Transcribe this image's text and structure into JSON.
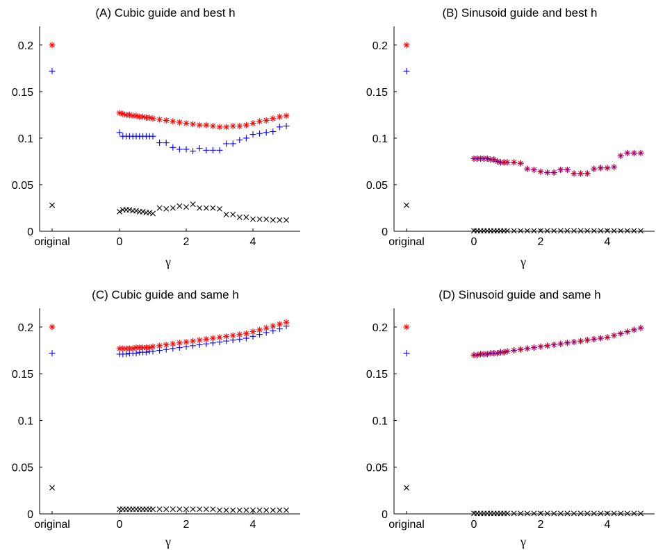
{
  "chart_data": [
    {
      "type": "scatter",
      "title": "(A) Cubic guide and best h",
      "xlabel": "γ",
      "ylabel": "",
      "xlim": [
        -0.4,
        5.3
      ],
      "ylim": [
        0,
        0.22
      ],
      "x_ticks": [
        "0",
        "2",
        "4"
      ],
      "y_ticks": [
        "0",
        "0.05",
        "0.1",
        "0.15",
        "0.2"
      ],
      "categorical_x": "original",
      "original": {
        "red_star": 0.2,
        "blue_plus": 0.172,
        "black_x": 0.028
      },
      "x": [
        0,
        0.1,
        0.2,
        0.3,
        0.4,
        0.5,
        0.6,
        0.7,
        0.8,
        0.9,
        1.0,
        1.2,
        1.4,
        1.6,
        1.8,
        2.0,
        2.2,
        2.4,
        2.6,
        2.8,
        3.0,
        3.2,
        3.4,
        3.6,
        3.8,
        4.0,
        4.2,
        4.4,
        4.6,
        4.8,
        5.0
      ],
      "series": [
        {
          "marker": "star",
          "color": "#ff0000",
          "values": [
            0.127,
            0.126,
            0.125,
            0.125,
            0.124,
            0.124,
            0.123,
            0.123,
            0.122,
            0.122,
            0.121,
            0.12,
            0.119,
            0.118,
            0.117,
            0.116,
            0.115,
            0.114,
            0.114,
            0.113,
            0.112,
            0.112,
            0.113,
            0.113,
            0.114,
            0.116,
            0.118,
            0.119,
            0.121,
            0.123,
            0.124
          ]
        },
        {
          "marker": "plus",
          "color": "#0000ff",
          "values": [
            0.106,
            0.102,
            0.102,
            0.102,
            0.102,
            0.102,
            0.102,
            0.102,
            0.102,
            0.102,
            0.102,
            0.095,
            0.095,
            0.09,
            0.088,
            0.088,
            0.086,
            0.089,
            0.087,
            0.087,
            0.087,
            0.094,
            0.094,
            0.098,
            0.1,
            0.104,
            0.105,
            0.106,
            0.107,
            0.112,
            0.113
          ]
        },
        {
          "marker": "x",
          "color": "#000000",
          "values": [
            0.021,
            0.023,
            0.023,
            0.023,
            0.022,
            0.022,
            0.021,
            0.021,
            0.02,
            0.02,
            0.019,
            0.025,
            0.024,
            0.025,
            0.027,
            0.026,
            0.029,
            0.025,
            0.025,
            0.025,
            0.024,
            0.018,
            0.018,
            0.015,
            0.015,
            0.013,
            0.013,
            0.013,
            0.012,
            0.012,
            0.012
          ]
        }
      ]
    },
    {
      "type": "scatter",
      "title": "(B) Sinusoid guide and best h",
      "xlabel": "γ",
      "ylabel": "",
      "xlim": [
        -0.4,
        5.3
      ],
      "ylim": [
        0,
        0.22
      ],
      "x_ticks": [
        "0",
        "2",
        "4"
      ],
      "y_ticks": [
        "0",
        "0.05",
        "0.1",
        "0.15",
        "0.2"
      ],
      "categorical_x": "original",
      "original": {
        "red_star": 0.2,
        "blue_plus": 0.172,
        "black_x": 0.028
      },
      "x": [
        0,
        0.1,
        0.2,
        0.3,
        0.4,
        0.5,
        0.6,
        0.7,
        0.8,
        0.9,
        1.0,
        1.2,
        1.4,
        1.6,
        1.8,
        2.0,
        2.2,
        2.4,
        2.6,
        2.8,
        3.0,
        3.2,
        3.4,
        3.6,
        3.8,
        4.0,
        4.2,
        4.4,
        4.6,
        4.8,
        5.0
      ],
      "series": [
        {
          "marker": "star",
          "color": "#ff0000",
          "values": [
            0.078,
            0.078,
            0.078,
            0.078,
            0.078,
            0.077,
            0.077,
            0.075,
            0.074,
            0.074,
            0.074,
            0.074,
            0.073,
            0.067,
            0.066,
            0.064,
            0.063,
            0.063,
            0.066,
            0.066,
            0.062,
            0.062,
            0.062,
            0.067,
            0.068,
            0.068,
            0.069,
            0.081,
            0.084,
            0.084,
            0.084
          ]
        },
        {
          "marker": "plus",
          "color": "#0000ff",
          "values": [
            0.078,
            0.078,
            0.078,
            0.078,
            0.078,
            0.077,
            0.077,
            0.075,
            0.074,
            0.074,
            0.074,
            0.074,
            0.073,
            0.067,
            0.066,
            0.064,
            0.063,
            0.063,
            0.066,
            0.066,
            0.062,
            0.062,
            0.062,
            0.067,
            0.068,
            0.068,
            0.069,
            0.081,
            0.084,
            0.084,
            0.084
          ]
        },
        {
          "marker": "x",
          "color": "#000000",
          "values": [
            0.0005,
            0.0005,
            0.0005,
            0.0005,
            0.0005,
            0.0005,
            0.0005,
            0.0005,
            0.0005,
            0.0005,
            0.0005,
            0.0005,
            0.0005,
            0.0005,
            0.0005,
            0.0005,
            0.0005,
            0.0005,
            0.0005,
            0.0005,
            0.0005,
            0.0005,
            0.0005,
            0.0005,
            0.0005,
            0.0005,
            0.0005,
            0.0005,
            0.0005,
            0.0005,
            0.0005
          ]
        }
      ]
    },
    {
      "type": "scatter",
      "title": "(C) Cubic guide and same h",
      "xlabel": "γ",
      "ylabel": "",
      "xlim": [
        -0.4,
        5.3
      ],
      "ylim": [
        0,
        0.22
      ],
      "x_ticks": [
        "0",
        "2",
        "4"
      ],
      "y_ticks": [
        "0",
        "0.05",
        "0.1",
        "0.15",
        "0.2"
      ],
      "categorical_x": "original",
      "original": {
        "red_star": 0.2,
        "blue_plus": 0.172,
        "black_x": 0.028
      },
      "x": [
        0,
        0.1,
        0.2,
        0.3,
        0.4,
        0.5,
        0.6,
        0.7,
        0.8,
        0.9,
        1.0,
        1.2,
        1.4,
        1.6,
        1.8,
        2.0,
        2.2,
        2.4,
        2.6,
        2.8,
        3.0,
        3.2,
        3.4,
        3.6,
        3.8,
        4.0,
        4.2,
        4.4,
        4.6,
        4.8,
        5.0
      ],
      "series": [
        {
          "marker": "star",
          "color": "#ff0000",
          "values": [
            0.177,
            0.177,
            0.177,
            0.177,
            0.177,
            0.178,
            0.178,
            0.178,
            0.178,
            0.178,
            0.179,
            0.18,
            0.181,
            0.182,
            0.183,
            0.184,
            0.185,
            0.186,
            0.187,
            0.188,
            0.189,
            0.19,
            0.191,
            0.192,
            0.193,
            0.195,
            0.197,
            0.199,
            0.201,
            0.203,
            0.205
          ]
        },
        {
          "marker": "plus",
          "color": "#0000ff",
          "values": [
            0.171,
            0.171,
            0.171,
            0.172,
            0.172,
            0.172,
            0.173,
            0.173,
            0.173,
            0.174,
            0.174,
            0.175,
            0.176,
            0.177,
            0.178,
            0.179,
            0.18,
            0.181,
            0.182,
            0.183,
            0.184,
            0.185,
            0.186,
            0.187,
            0.188,
            0.19,
            0.192,
            0.194,
            0.196,
            0.198,
            0.201
          ]
        },
        {
          "marker": "x",
          "color": "#000000",
          "values": [
            0.005,
            0.005,
            0.005,
            0.005,
            0.005,
            0.005,
            0.005,
            0.005,
            0.005,
            0.005,
            0.005,
            0.005,
            0.005,
            0.005,
            0.005,
            0.005,
            0.005,
            0.005,
            0.005,
            0.005,
            0.004,
            0.004,
            0.004,
            0.004,
            0.004,
            0.004,
            0.004,
            0.004,
            0.004,
            0.004,
            0.004
          ]
        }
      ]
    },
    {
      "type": "scatter",
      "title": "(D) Sinusoid guide and same h",
      "xlabel": "γ",
      "ylabel": "",
      "xlim": [
        -0.4,
        5.3
      ],
      "ylim": [
        0,
        0.22
      ],
      "x_ticks": [
        "0",
        "2",
        "4"
      ],
      "y_ticks": [
        "0",
        "0.05",
        "0.1",
        "0.15",
        "0.2"
      ],
      "categorical_x": "original",
      "original": {
        "red_star": 0.2,
        "blue_plus": 0.172,
        "black_x": 0.028
      },
      "x": [
        0,
        0.1,
        0.2,
        0.3,
        0.4,
        0.5,
        0.6,
        0.7,
        0.8,
        0.9,
        1.0,
        1.2,
        1.4,
        1.6,
        1.8,
        2.0,
        2.2,
        2.4,
        2.6,
        2.8,
        3.0,
        3.2,
        3.4,
        3.6,
        3.8,
        4.0,
        4.2,
        4.4,
        4.6,
        4.8,
        5.0
      ],
      "series": [
        {
          "marker": "star",
          "color": "#ff0000",
          "values": [
            0.17,
            0.17,
            0.171,
            0.171,
            0.171,
            0.172,
            0.172,
            0.172,
            0.173,
            0.173,
            0.174,
            0.175,
            0.176,
            0.177,
            0.178,
            0.179,
            0.18,
            0.181,
            0.182,
            0.183,
            0.184,
            0.185,
            0.186,
            0.187,
            0.188,
            0.189,
            0.191,
            0.193,
            0.195,
            0.197,
            0.199
          ]
        },
        {
          "marker": "plus",
          "color": "#0000ff",
          "values": [
            0.17,
            0.17,
            0.171,
            0.171,
            0.171,
            0.172,
            0.172,
            0.172,
            0.173,
            0.173,
            0.174,
            0.175,
            0.176,
            0.177,
            0.178,
            0.179,
            0.18,
            0.181,
            0.182,
            0.183,
            0.184,
            0.185,
            0.186,
            0.187,
            0.188,
            0.189,
            0.191,
            0.193,
            0.195,
            0.197,
            0.199
          ]
        },
        {
          "marker": "x",
          "color": "#000000",
          "values": [
            0.0005,
            0.0005,
            0.0005,
            0.0005,
            0.0005,
            0.0005,
            0.0005,
            0.0005,
            0.0005,
            0.0005,
            0.0005,
            0.0005,
            0.0005,
            0.0005,
            0.0005,
            0.0005,
            0.0005,
            0.0005,
            0.0005,
            0.0005,
            0.0005,
            0.0005,
            0.0005,
            0.0005,
            0.0005,
            0.0005,
            0.0005,
            0.0005,
            0.0005,
            0.0005,
            0.0005
          ]
        }
      ]
    }
  ]
}
